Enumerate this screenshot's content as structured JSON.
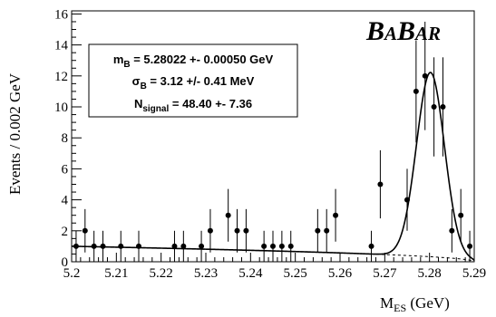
{
  "chart_data": {
    "type": "scatter",
    "xlabel_main": "M",
    "xlabel_sub": "ES",
    "xlabel_unit": " (GeV)",
    "ylabel": "Events / 0.002 GeV",
    "xlim": [
      5.2,
      5.29
    ],
    "ylim": [
      0,
      16.2
    ],
    "xticks": [
      "5.2",
      "5.21",
      "5.22",
      "5.23",
      "5.24",
      "5.25",
      "5.26",
      "5.27",
      "5.28",
      "5.29"
    ],
    "yticks": [
      "0",
      "2",
      "4",
      "6",
      "8",
      "10",
      "12",
      "14",
      "16"
    ],
    "grid": false,
    "logo": "BABAR",
    "legend": {
      "line1_main": "m",
      "line1_sub": "B",
      "line1_rest": " = 5.28022 +- 0.00050 GeV",
      "line2_main": "σ",
      "line2_sub": "B",
      "line2_rest": " = 3.12 +/- 0.41 MeV",
      "line3_main": "N",
      "line3_sub": "signal",
      "line3_rest": " = 48.40 +- 7.36"
    },
    "points": [
      {
        "x": 5.201,
        "y": 1,
        "err": 1
      },
      {
        "x": 5.203,
        "y": 2,
        "err": 1.4
      },
      {
        "x": 5.205,
        "y": 1,
        "err": 1
      },
      {
        "x": 5.207,
        "y": 1,
        "err": 1
      },
      {
        "x": 5.211,
        "y": 1,
        "err": 1
      },
      {
        "x": 5.215,
        "y": 1,
        "err": 1
      },
      {
        "x": 5.223,
        "y": 1,
        "err": 1
      },
      {
        "x": 5.225,
        "y": 1,
        "err": 1
      },
      {
        "x": 5.229,
        "y": 1,
        "err": 1
      },
      {
        "x": 5.231,
        "y": 2,
        "err": 1.4
      },
      {
        "x": 5.235,
        "y": 3,
        "err": 1.7
      },
      {
        "x": 5.237,
        "y": 2,
        "err": 1.4
      },
      {
        "x": 5.239,
        "y": 2,
        "err": 1.4
      },
      {
        "x": 5.243,
        "y": 1,
        "err": 1
      },
      {
        "x": 5.245,
        "y": 1,
        "err": 1
      },
      {
        "x": 5.247,
        "y": 1,
        "err": 1
      },
      {
        "x": 5.249,
        "y": 1,
        "err": 1
      },
      {
        "x": 5.255,
        "y": 2,
        "err": 1.4
      },
      {
        "x": 5.257,
        "y": 2,
        "err": 1.4
      },
      {
        "x": 5.259,
        "y": 3,
        "err": 1.7
      },
      {
        "x": 5.267,
        "y": 1,
        "err": 1
      },
      {
        "x": 5.269,
        "y": 5,
        "err": 2.2
      },
      {
        "x": 5.275,
        "y": 4,
        "err": 2
      },
      {
        "x": 5.277,
        "y": 11,
        "err": 3.3
      },
      {
        "x": 5.279,
        "y": 12,
        "err": 3.5
      },
      {
        "x": 5.281,
        "y": 10,
        "err": 3.2
      },
      {
        "x": 5.283,
        "y": 10,
        "err": 3.2
      },
      {
        "x": 5.285,
        "y": 2,
        "err": 1.4
      },
      {
        "x": 5.287,
        "y": 3,
        "err": 1.7
      },
      {
        "x": 5.289,
        "y": 1,
        "err": 1
      }
    ],
    "fit": {
      "mean": 5.28022,
      "sigma": 0.00312,
      "peak_height": 11.9,
      "background_level": 1.0,
      "endpoint": 5.29
    }
  }
}
